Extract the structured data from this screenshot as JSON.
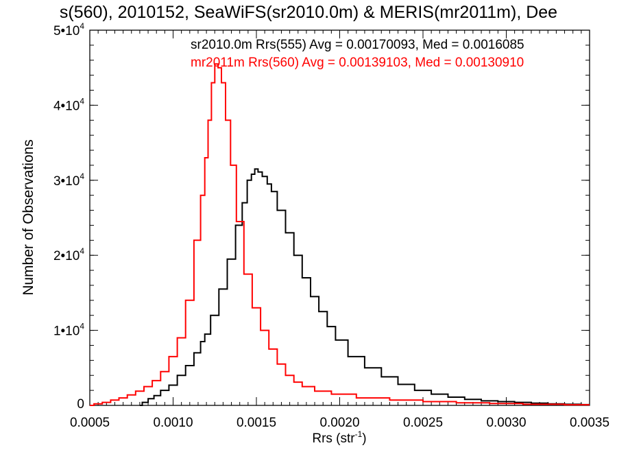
{
  "chart_data": {
    "type": "line",
    "title": "s(560), 2010152, SeaWiFS(sr2010.0m) & MERIS(mr2011m), Dee",
    "xlabel": "Rrs (str",
    "xlabel_sup": "-1",
    "xlabel_close": ")",
    "ylabel": "Number of Observations",
    "xlim": [
      0.0005,
      0.0035
    ],
    "ylim": [
      0,
      50000
    ],
    "x_ticks": [
      {
        "value": 0.0005,
        "label": "0.0005"
      },
      {
        "value": 0.001,
        "label": "0.0010"
      },
      {
        "value": 0.0015,
        "label": "0.0015"
      },
      {
        "value": 0.002,
        "label": "0.0020"
      },
      {
        "value": 0.0025,
        "label": "0.0025"
      },
      {
        "value": 0.003,
        "label": "0.0030"
      },
      {
        "value": 0.0035,
        "label": "0.0035"
      }
    ],
    "y_ticks": [
      {
        "value": 0,
        "base": "0",
        "exp": ""
      },
      {
        "value": 10000,
        "base": "1•10",
        "exp": "4"
      },
      {
        "value": 20000,
        "base": "2•10",
        "exp": "4"
      },
      {
        "value": 30000,
        "base": "3•10",
        "exp": "4"
      },
      {
        "value": 40000,
        "base": "4•10",
        "exp": "4"
      },
      {
        "value": 50000,
        "base": "5•10",
        "exp": "4"
      }
    ],
    "annotations": [
      {
        "text": "sr2010.0m Rrs(555) Avg = 0.00170093, Med = 0.0016085",
        "color": "#000000"
      },
      {
        "text": "mr2011m Rrs(560) Avg = 0.00139103, Med = 0.00130910",
        "color": "#ff0000"
      }
    ],
    "series": [
      {
        "color": "#000000",
        "points": [
          [
            0.0008,
            0
          ],
          [
            0.00083,
            400
          ],
          [
            0.00087,
            900
          ],
          [
            0.0009,
            1300
          ],
          [
            0.00095,
            2000
          ],
          [
            0.001,
            2700
          ],
          [
            0.00105,
            4000
          ],
          [
            0.0011,
            5300
          ],
          [
            0.00115,
            7000
          ],
          [
            0.00118,
            8500
          ],
          [
            0.0012,
            9500
          ],
          [
            0.00125,
            12000
          ],
          [
            0.0013,
            15500
          ],
          [
            0.00135,
            19500
          ],
          [
            0.0014,
            24000
          ],
          [
            0.00143,
            27000
          ],
          [
            0.00146,
            30000
          ],
          [
            0.00148,
            30800
          ],
          [
            0.0015,
            31500
          ],
          [
            0.00152,
            31100
          ],
          [
            0.00155,
            30500
          ],
          [
            0.00158,
            29500
          ],
          [
            0.0016,
            28500
          ],
          [
            0.00165,
            26000
          ],
          [
            0.0017,
            23000
          ],
          [
            0.00175,
            20000
          ],
          [
            0.0018,
            17000
          ],
          [
            0.00185,
            14500
          ],
          [
            0.0019,
            12500
          ],
          [
            0.00195,
            10500
          ],
          [
            0.002,
            8700
          ],
          [
            0.0021,
            6500
          ],
          [
            0.0022,
            5000
          ],
          [
            0.0023,
            3800
          ],
          [
            0.0024,
            2800
          ],
          [
            0.0025,
            2000
          ],
          [
            0.0026,
            1500
          ],
          [
            0.0027,
            1100
          ],
          [
            0.0028,
            800
          ],
          [
            0.0029,
            600
          ],
          [
            0.003,
            500
          ],
          [
            0.0031,
            400
          ],
          [
            0.0032,
            300
          ],
          [
            0.0033,
            200
          ],
          [
            0.0034,
            150
          ],
          [
            0.0035,
            100
          ]
        ]
      },
      {
        "color": "#ff0000",
        "points": [
          [
            0.0005,
            0
          ],
          [
            0.00055,
            200
          ],
          [
            0.0006,
            400
          ],
          [
            0.00065,
            700
          ],
          [
            0.0007,
            1000
          ],
          [
            0.00075,
            1400
          ],
          [
            0.0008,
            1900
          ],
          [
            0.00085,
            2500
          ],
          [
            0.0009,
            3300
          ],
          [
            0.00095,
            4500
          ],
          [
            0.001,
            6500
          ],
          [
            0.00105,
            9000
          ],
          [
            0.0011,
            14000
          ],
          [
            0.00115,
            22000
          ],
          [
            0.00118,
            28000
          ],
          [
            0.0012,
            33000
          ],
          [
            0.00122,
            38000
          ],
          [
            0.00124,
            43000
          ],
          [
            0.00126,
            45500
          ],
          [
            0.00128,
            45000
          ],
          [
            0.0013,
            43000
          ],
          [
            0.00133,
            38000
          ],
          [
            0.00136,
            32000
          ],
          [
            0.0014,
            24500
          ],
          [
            0.00145,
            17500
          ],
          [
            0.0015,
            13000
          ],
          [
            0.00155,
            10000
          ],
          [
            0.0016,
            7500
          ],
          [
            0.00165,
            5500
          ],
          [
            0.0017,
            4000
          ],
          [
            0.00175,
            3100
          ],
          [
            0.0018,
            2500
          ],
          [
            0.0019,
            1900
          ],
          [
            0.002,
            1500
          ],
          [
            0.0022,
            1000
          ],
          [
            0.0024,
            700
          ],
          [
            0.0026,
            500
          ],
          [
            0.0028,
            350
          ],
          [
            0.003,
            250
          ],
          [
            0.0032,
            150
          ],
          [
            0.0035,
            80
          ]
        ]
      }
    ]
  }
}
